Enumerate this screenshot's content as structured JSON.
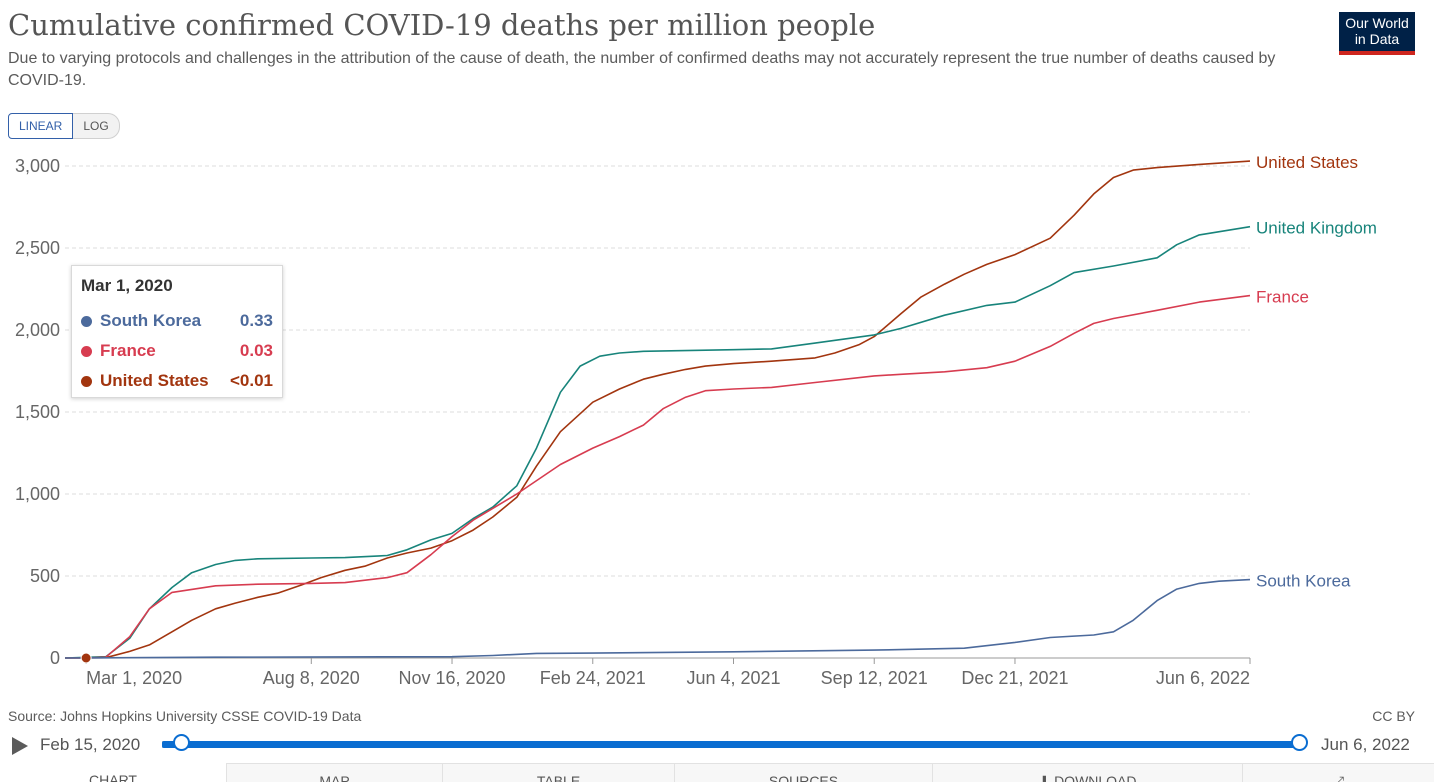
{
  "header": {
    "title": "Cumulative confirmed COVID-19 deaths per million people",
    "subtitle": "Due to varying protocols and challenges in the attribution of the cause of death, the number of confirmed deaths may not accurately represent the true number of deaths caused by COVID-19.",
    "logo_line1": "Our World",
    "logo_line2": "in Data"
  },
  "controls": {
    "linear_label": "LINEAR",
    "log_label": "LOG"
  },
  "tooltip": {
    "date": "Mar 1, 2020",
    "rows": [
      {
        "name": "South Korea",
        "value": "0.33",
        "color": "#4c6a9c"
      },
      {
        "name": "France",
        "value": "0.03",
        "color": "#d73c50"
      },
      {
        "name": "United States",
        "value": "<0.01",
        "color": "#a2350f"
      }
    ]
  },
  "footer": {
    "source": "Source: Johns Hopkins University CSSE COVID-19 Data",
    "license": "CC BY"
  },
  "timeline": {
    "start_label": "Feb 15, 2020",
    "end_label": "Jun 6, 2022"
  },
  "tabs": [
    {
      "label": "CHART"
    },
    {
      "label": "MAP"
    },
    {
      "label": "TABLE"
    },
    {
      "label": "SOURCES"
    },
    {
      "label": "⬇ DOWNLOAD"
    },
    {
      "label": "⤢"
    }
  ],
  "chart_data": {
    "type": "line",
    "title": "Cumulative confirmed COVID-19 deaths per million people",
    "ylabel": "",
    "xlabel": "",
    "ylim": [
      0,
      3000
    ],
    "xlim": [
      "2020-02-15",
      "2022-06-06"
    ],
    "yticks": [
      0,
      500,
      1000,
      1500,
      2000,
      2500,
      3000
    ],
    "ytick_labels": [
      "0",
      "500",
      "1,000",
      "1,500",
      "2,000",
      "2,500",
      "3,000"
    ],
    "xticks": [
      "2020-03-01",
      "2020-08-08",
      "2020-11-16",
      "2021-02-24",
      "2021-06-04",
      "2021-09-12",
      "2021-12-21",
      "2022-06-06"
    ],
    "xtick_labels": [
      "Mar 1, 2020",
      "Aug 8, 2020",
      "Nov 16, 2020",
      "Feb 24, 2021",
      "Jun 4, 2021",
      "Sep 12, 2021",
      "Dec 21, 2021",
      "Jun 6, 2022"
    ],
    "grid": "horizontal dashed",
    "legend": "line-end labels",
    "series": [
      {
        "name": "United States",
        "color": "#a2350f",
        "points": [
          [
            "2020-02-15",
            0
          ],
          [
            "2020-03-15",
            2
          ],
          [
            "2020-04-01",
            40
          ],
          [
            "2020-04-15",
            80
          ],
          [
            "2020-05-01",
            160
          ],
          [
            "2020-05-15",
            230
          ],
          [
            "2020-06-01",
            300
          ],
          [
            "2020-06-15",
            335
          ],
          [
            "2020-07-01",
            370
          ],
          [
            "2020-07-15",
            395
          ],
          [
            "2020-08-01",
            445
          ],
          [
            "2020-08-15",
            490
          ],
          [
            "2020-09-01",
            535
          ],
          [
            "2020-09-15",
            560
          ],
          [
            "2020-10-01",
            610
          ],
          [
            "2020-10-15",
            640
          ],
          [
            "2020-11-01",
            670
          ],
          [
            "2020-11-16",
            715
          ],
          [
            "2020-12-01",
            780
          ],
          [
            "2020-12-15",
            860
          ],
          [
            "2021-01-01",
            980
          ],
          [
            "2021-01-15",
            1170
          ],
          [
            "2021-02-01",
            1380
          ],
          [
            "2021-02-24",
            1560
          ],
          [
            "2021-03-15",
            1640
          ],
          [
            "2021-04-01",
            1700
          ],
          [
            "2021-04-15",
            1730
          ],
          [
            "2021-05-01",
            1760
          ],
          [
            "2021-05-15",
            1780
          ],
          [
            "2021-06-04",
            1795
          ],
          [
            "2021-07-01",
            1810
          ],
          [
            "2021-08-01",
            1830
          ],
          [
            "2021-08-15",
            1860
          ],
          [
            "2021-09-01",
            1910
          ],
          [
            "2021-09-12",
            1960
          ],
          [
            "2021-10-01",
            2100
          ],
          [
            "2021-10-15",
            2200
          ],
          [
            "2021-11-01",
            2280
          ],
          [
            "2021-11-15",
            2340
          ],
          [
            "2021-12-01",
            2400
          ],
          [
            "2021-12-21",
            2460
          ],
          [
            "2022-01-15",
            2560
          ],
          [
            "2022-02-01",
            2700
          ],
          [
            "2022-02-15",
            2830
          ],
          [
            "2022-03-01",
            2930
          ],
          [
            "2022-03-15",
            2975
          ],
          [
            "2022-04-01",
            2990
          ],
          [
            "2022-05-01",
            3010
          ],
          [
            "2022-06-06",
            3030
          ]
        ]
      },
      {
        "name": "United Kingdom",
        "color": "#18847b",
        "points": [
          [
            "2020-02-15",
            0
          ],
          [
            "2020-03-15",
            8
          ],
          [
            "2020-04-01",
            120
          ],
          [
            "2020-04-15",
            300
          ],
          [
            "2020-05-01",
            430
          ],
          [
            "2020-05-15",
            520
          ],
          [
            "2020-06-01",
            570
          ],
          [
            "2020-06-15",
            595
          ],
          [
            "2020-07-01",
            605
          ],
          [
            "2020-08-08",
            610
          ],
          [
            "2020-09-01",
            612
          ],
          [
            "2020-10-01",
            625
          ],
          [
            "2020-10-15",
            660
          ],
          [
            "2020-11-01",
            720
          ],
          [
            "2020-11-16",
            760
          ],
          [
            "2020-12-01",
            850
          ],
          [
            "2020-12-15",
            920
          ],
          [
            "2021-01-01",
            1050
          ],
          [
            "2021-01-15",
            1280
          ],
          [
            "2021-02-01",
            1620
          ],
          [
            "2021-02-15",
            1780
          ],
          [
            "2021-03-01",
            1840
          ],
          [
            "2021-03-15",
            1860
          ],
          [
            "2021-04-01",
            1870
          ],
          [
            "2021-06-04",
            1880
          ],
          [
            "2021-07-01",
            1885
          ],
          [
            "2021-08-01",
            1920
          ],
          [
            "2021-09-12",
            1970
          ],
          [
            "2021-10-01",
            2010
          ],
          [
            "2021-11-01",
            2090
          ],
          [
            "2021-12-01",
            2150
          ],
          [
            "2021-12-21",
            2170
          ],
          [
            "2022-01-15",
            2270
          ],
          [
            "2022-02-01",
            2350
          ],
          [
            "2022-03-01",
            2390
          ],
          [
            "2022-04-01",
            2440
          ],
          [
            "2022-04-15",
            2520
          ],
          [
            "2022-05-01",
            2580
          ],
          [
            "2022-06-06",
            2630
          ]
        ]
      },
      {
        "name": "France",
        "color": "#d73c50",
        "points": [
          [
            "2020-02-15",
            0
          ],
          [
            "2020-03-01",
            0.03
          ],
          [
            "2020-03-15",
            5
          ],
          [
            "2020-04-01",
            130
          ],
          [
            "2020-04-15",
            300
          ],
          [
            "2020-05-01",
            400
          ],
          [
            "2020-06-01",
            440
          ],
          [
            "2020-07-01",
            450
          ],
          [
            "2020-08-08",
            455
          ],
          [
            "2020-09-01",
            460
          ],
          [
            "2020-10-01",
            490
          ],
          [
            "2020-10-15",
            520
          ],
          [
            "2020-11-01",
            630
          ],
          [
            "2020-11-16",
            740
          ],
          [
            "2020-12-01",
            840
          ],
          [
            "2021-01-01",
            1000
          ],
          [
            "2021-02-01",
            1180
          ],
          [
            "2021-02-24",
            1280
          ],
          [
            "2021-03-15",
            1350
          ],
          [
            "2021-04-01",
            1420
          ],
          [
            "2021-04-15",
            1520
          ],
          [
            "2021-05-01",
            1590
          ],
          [
            "2021-05-15",
            1630
          ],
          [
            "2021-06-04",
            1640
          ],
          [
            "2021-07-01",
            1650
          ],
          [
            "2021-08-01",
            1680
          ],
          [
            "2021-09-12",
            1720
          ],
          [
            "2021-10-01",
            1730
          ],
          [
            "2021-11-01",
            1745
          ],
          [
            "2021-12-01",
            1770
          ],
          [
            "2021-12-21",
            1810
          ],
          [
            "2022-01-15",
            1900
          ],
          [
            "2022-02-01",
            1980
          ],
          [
            "2022-02-15",
            2040
          ],
          [
            "2022-03-01",
            2070
          ],
          [
            "2022-04-01",
            2120
          ],
          [
            "2022-05-01",
            2170
          ],
          [
            "2022-06-06",
            2210
          ]
        ]
      },
      {
        "name": "South Korea",
        "color": "#4c6a9c",
        "points": [
          [
            "2020-02-15",
            0
          ],
          [
            "2020-03-01",
            0.33
          ],
          [
            "2020-06-01",
            5
          ],
          [
            "2020-11-16",
            8
          ],
          [
            "2020-12-15",
            15
          ],
          [
            "2021-01-15",
            28
          ],
          [
            "2021-02-24",
            30
          ],
          [
            "2021-06-04",
            38
          ],
          [
            "2021-09-12",
            48
          ],
          [
            "2021-11-15",
            60
          ],
          [
            "2021-12-21",
            95
          ],
          [
            "2022-01-15",
            125
          ],
          [
            "2022-02-15",
            140
          ],
          [
            "2022-03-01",
            160
          ],
          [
            "2022-03-15",
            230
          ],
          [
            "2022-04-01",
            350
          ],
          [
            "2022-04-15",
            420
          ],
          [
            "2022-05-01",
            455
          ],
          [
            "2022-05-15",
            468
          ],
          [
            "2022-06-06",
            478
          ]
        ]
      }
    ]
  }
}
